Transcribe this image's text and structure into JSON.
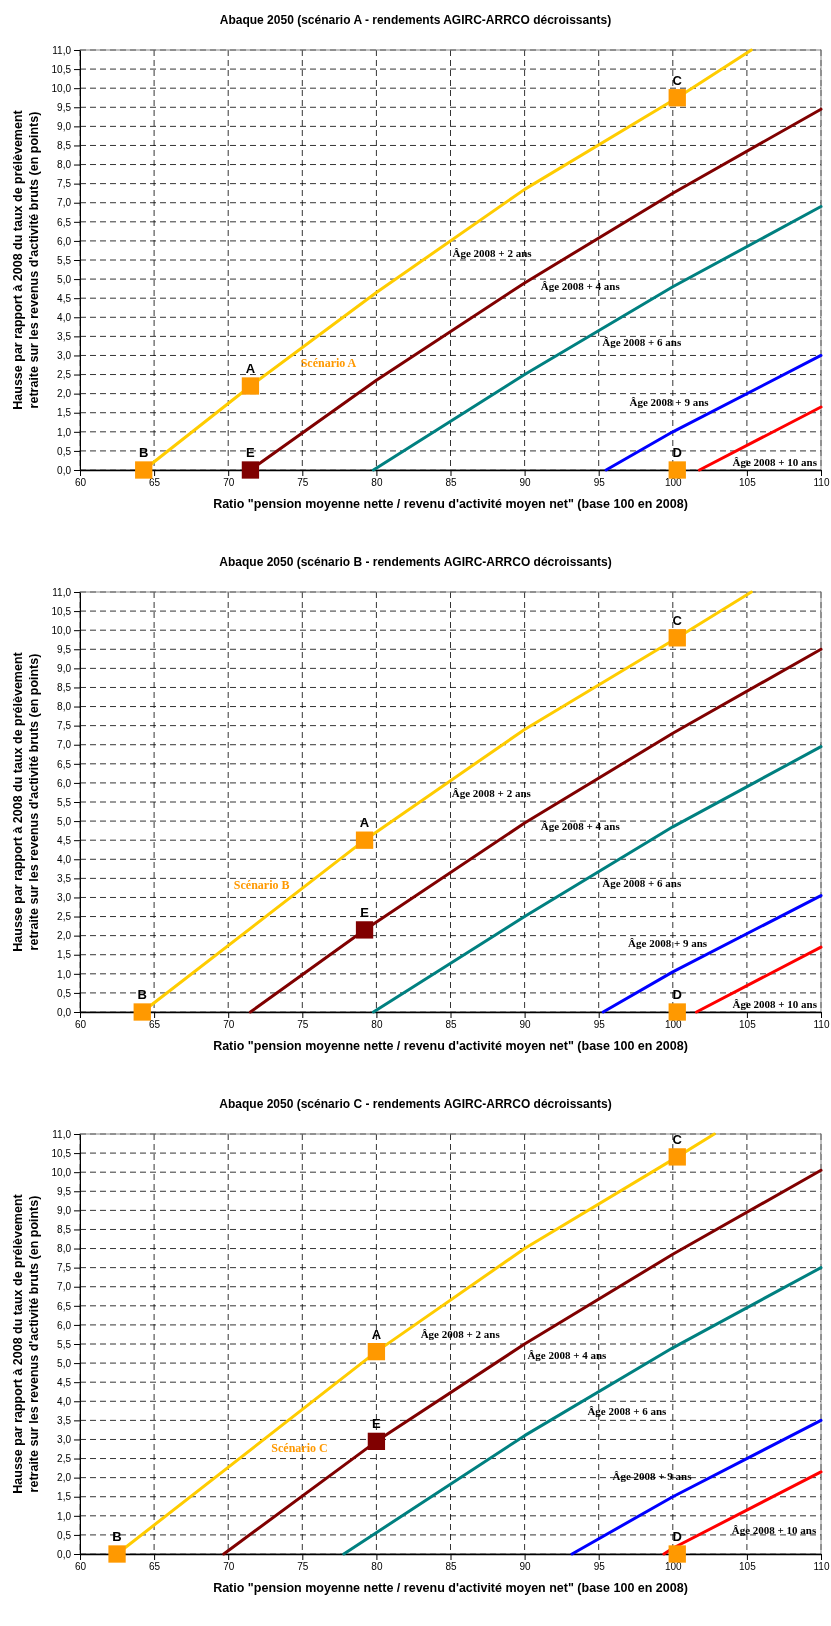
{
  "chart_data": [
    {
      "type": "line",
      "title": "Abaque 2050 (scénario A - rendements AGIRC-ARRCO décroissants)",
      "xlabel": "Ratio \"pension moyenne nette / revenu d'activité moyen net\" (base 100 en 2008)",
      "ylabel": "Hausse par rapport à 2008 du taux de prélèvement\nretraite sur les revenus d'activité bruts (en points)",
      "xlim": [
        60,
        110
      ],
      "xticks": [
        60,
        65,
        70,
        75,
        80,
        85,
        90,
        95,
        100,
        105,
        110
      ],
      "ylim": [
        0,
        11
      ],
      "yticks": [
        {
          "value": 0,
          "label": "0,0"
        },
        {
          "value": 0.5,
          "label": "0,5"
        },
        {
          "value": 1,
          "label": "1,0"
        },
        {
          "value": 1.5,
          "label": "1,5"
        },
        {
          "value": 2,
          "label": "2,0"
        },
        {
          "value": 2.5,
          "label": "2,5"
        },
        {
          "value": 3,
          "label": "3,0"
        },
        {
          "value": 3.5,
          "label": "3,5"
        },
        {
          "value": 4,
          "label": "4,0"
        },
        {
          "value": 4.5,
          "label": "4,5"
        },
        {
          "value": 5,
          "label": "5,0"
        },
        {
          "value": 5.5,
          "label": "5,5"
        },
        {
          "value": 6,
          "label": "6,0"
        },
        {
          "value": 6.5,
          "label": "6,5"
        },
        {
          "value": 7,
          "label": "7,0"
        },
        {
          "value": 7.5,
          "label": "7,5"
        },
        {
          "value": 8,
          "label": "8,0"
        },
        {
          "value": 8.5,
          "label": "8,5"
        },
        {
          "value": 9,
          "label": "9,0"
        },
        {
          "value": 9.5,
          "label": "9,5"
        },
        {
          "value": 10,
          "label": "10,0"
        },
        {
          "value": 10.5,
          "label": "10,5"
        },
        {
          "value": 11,
          "label": "11,0"
        }
      ],
      "grid": true,
      "line_style": "solid",
      "series": [
        {
          "name": "Âge 2008 + 2 ans",
          "color": "#ffcc00",
          "marker": "none",
          "x": [
            64.3,
            71.5,
            80,
            90,
            100.3,
            105.3
          ],
          "values": [
            0,
            2.2,
            4.65,
            7.35,
            9.75,
            11
          ]
        },
        {
          "name": "Âge 2008 + 4 ans",
          "color": "#800000",
          "marker": "none",
          "x": [
            71.5,
            80,
            90,
            100,
            110
          ],
          "values": [
            0,
            2.35,
            4.9,
            7.25,
            9.45
          ]
        },
        {
          "name": "Âge 2008 + 6 ans",
          "color": "#008080",
          "marker": "none",
          "x": [
            79.8,
            90,
            100,
            110
          ],
          "values": [
            0,
            2.5,
            4.8,
            6.9
          ]
        },
        {
          "name": "Âge 2008 + 9 ans",
          "color": "#0000ff",
          "marker": "none",
          "x": [
            95.5,
            100,
            110
          ],
          "values": [
            0,
            1,
            3
          ]
        },
        {
          "name": "Âge 2008 + 10 ans",
          "color": "#ff0000",
          "marker": "none",
          "x": [
            101.8,
            110
          ],
          "values": [
            0,
            1.65
          ]
        },
        {
          "type": "scatter",
          "color": "#ff9900",
          "marker": "square",
          "x": [
            71.5,
            64.3,
            100.3,
            100.3
          ],
          "values": [
            2.2,
            0,
            9.75,
            0
          ],
          "value_labels": [
            "A",
            "B",
            "C",
            "D"
          ]
        },
        {
          "type": "scatter",
          "color": "#800000",
          "marker": "square",
          "x": [
            71.5
          ],
          "values": [
            0
          ],
          "value_labels": [
            "E"
          ]
        }
      ],
      "annotations": [
        "Scénario A"
      ]
    },
    {
      "type": "line",
      "title": "Abaque 2050 (scénario B - rendements AGIRC-ARRCO décroissants)",
      "xlabel": "Ratio \"pension moyenne nette / revenu d'activité moyen net\" (base 100 en 2008)",
      "ylabel": "Hausse par rapport à 2008 du taux de prélèvement\nretraite sur les revenus d'activité bruts (en points)",
      "xlim": [
        60,
        110
      ],
      "xticks": [
        60,
        65,
        70,
        75,
        80,
        85,
        90,
        95,
        100,
        105,
        110
      ],
      "ylim": [
        0,
        11
      ],
      "yticks": [
        {
          "value": 0,
          "label": "0,0"
        },
        {
          "value": 0.5,
          "label": "0,5"
        },
        {
          "value": 1,
          "label": "1,0"
        },
        {
          "value": 1.5,
          "label": "1,5"
        },
        {
          "value": 2,
          "label": "2,0"
        },
        {
          "value": 2.5,
          "label": "2,5"
        },
        {
          "value": 3,
          "label": "3,0"
        },
        {
          "value": 3.5,
          "label": "3,5"
        },
        {
          "value": 4,
          "label": "4,0"
        },
        {
          "value": 4.5,
          "label": "4,5"
        },
        {
          "value": 5,
          "label": "5,0"
        },
        {
          "value": 5.5,
          "label": "5,5"
        },
        {
          "value": 6,
          "label": "6,0"
        },
        {
          "value": 6.5,
          "label": "6,5"
        },
        {
          "value": 7,
          "label": "7,0"
        },
        {
          "value": 7.5,
          "label": "7,5"
        },
        {
          "value": 8,
          "label": "8,0"
        },
        {
          "value": 8.5,
          "label": "8,5"
        },
        {
          "value": 9,
          "label": "9,0"
        },
        {
          "value": 9.5,
          "label": "9,5"
        },
        {
          "value": 10,
          "label": "10,0"
        },
        {
          "value": 10.5,
          "label": "10,5"
        },
        {
          "value": 11,
          "label": "11,0"
        }
      ],
      "grid": true,
      "line_style": "solid",
      "series": [
        {
          "name": "Âge 2008 + 2 ans",
          "color": "#ffcc00",
          "marker": "none",
          "x": [
            64.2,
            79.2,
            90,
            100.3,
            105.3
          ],
          "values": [
            0,
            4.5,
            7.4,
            9.8,
            11
          ]
        },
        {
          "name": "Âge 2008 + 4 ans",
          "color": "#800000",
          "marker": "none",
          "x": [
            71.5,
            79.2,
            90,
            100,
            110
          ],
          "values": [
            0,
            2.15,
            4.95,
            7.3,
            9.5
          ]
        },
        {
          "name": "Âge 2008 + 6 ans",
          "color": "#008080",
          "marker": "none",
          "x": [
            79.8,
            90,
            100,
            110
          ],
          "values": [
            0,
            2.5,
            4.85,
            6.95
          ]
        },
        {
          "name": "Âge 2008 + 9 ans",
          "color": "#0000ff",
          "marker": "none",
          "x": [
            95.3,
            100,
            110
          ],
          "values": [
            0,
            1.05,
            3.05
          ]
        },
        {
          "name": "Âge 2008 + 10 ans",
          "color": "#ff0000",
          "marker": "none",
          "x": [
            101.6,
            110
          ],
          "values": [
            0,
            1.7
          ]
        },
        {
          "type": "scatter",
          "color": "#ff9900",
          "marker": "square",
          "x": [
            79.2,
            64.2,
            100.3,
            100.3
          ],
          "values": [
            4.5,
            0,
            9.8,
            0
          ],
          "value_labels": [
            "A",
            "B",
            "C",
            "D"
          ]
        },
        {
          "type": "scatter",
          "color": "#800000",
          "marker": "square",
          "x": [
            79.2
          ],
          "values": [
            2.15
          ],
          "value_labels": [
            "E"
          ]
        }
      ],
      "annotations": [
        "Scénario B"
      ]
    },
    {
      "type": "line",
      "title": "Abaque 2050 (scénario C - rendements AGIRC-ARRCO décroissants)",
      "xlabel": "Ratio \"pension moyenne nette / revenu d'activité moyen net\" (base 100 en 2008)",
      "ylabel": "Hausse par rapport à 2008 du taux de prélèvement\nretraite sur les revenus d'activité bruts (en points)",
      "xlim": [
        60,
        110
      ],
      "xticks": [
        60,
        65,
        70,
        75,
        80,
        85,
        90,
        95,
        100,
        105,
        110
      ],
      "ylim": [
        0,
        11
      ],
      "yticks": [
        {
          "value": 0,
          "label": "0,0"
        },
        {
          "value": 0.5,
          "label": "0,5"
        },
        {
          "value": 1,
          "label": "1,0"
        },
        {
          "value": 1.5,
          "label": "1,5"
        },
        {
          "value": 2,
          "label": "2,0"
        },
        {
          "value": 2.5,
          "label": "2,5"
        },
        {
          "value": 3,
          "label": "3,0"
        },
        {
          "value": 3.5,
          "label": "3,5"
        },
        {
          "value": 4,
          "label": "4,0"
        },
        {
          "value": 4.5,
          "label": "4,5"
        },
        {
          "value": 5,
          "label": "5,0"
        },
        {
          "value": 5.5,
          "label": "5,5"
        },
        {
          "value": 6,
          "label": "6,0"
        },
        {
          "value": 6.5,
          "label": "6,5"
        },
        {
          "value": 7,
          "label": "7,0"
        },
        {
          "value": 7.5,
          "label": "7,5"
        },
        {
          "value": 8,
          "label": "8,0"
        },
        {
          "value": 8.5,
          "label": "8,5"
        },
        {
          "value": 9,
          "label": "9,0"
        },
        {
          "value": 9.5,
          "label": "9,5"
        },
        {
          "value": 10,
          "label": "10,0"
        },
        {
          "value": 10.5,
          "label": "10,5"
        },
        {
          "value": 11,
          "label": "11,0"
        }
      ],
      "grid": true,
      "line_style": "solid",
      "series": [
        {
          "name": "Âge 2008 + 2 ans",
          "color": "#ffcc00",
          "marker": "none",
          "x": [
            62.5,
            80,
            90,
            100.3,
            102.8
          ],
          "values": [
            0,
            5.3,
            8,
            10.4,
            11
          ]
        },
        {
          "name": "Âge 2008 + 4 ans",
          "color": "#800000",
          "marker": "none",
          "x": [
            69.7,
            80,
            90,
            100,
            110
          ],
          "values": [
            0,
            2.95,
            5.5,
            7.85,
            10.05
          ]
        },
        {
          "name": "Âge 2008 + 6 ans",
          "color": "#008080",
          "marker": "none",
          "x": [
            77.8,
            90,
            100,
            110
          ],
          "values": [
            0,
            3.1,
            5.4,
            7.5
          ]
        },
        {
          "name": "Âge 2008 + 9 ans",
          "color": "#0000ff",
          "marker": "none",
          "x": [
            93.2,
            100,
            110
          ],
          "values": [
            0,
            1.5,
            3.5
          ]
        },
        {
          "name": "Âge 2008 + 10 ans",
          "color": "#ff0000",
          "marker": "none",
          "x": [
            99.4,
            100,
            110
          ],
          "values": [
            0,
            0.15,
            2.15
          ]
        },
        {
          "type": "scatter",
          "color": "#ff9900",
          "marker": "square",
          "x": [
            80,
            62.5,
            100.3,
            100.3
          ],
          "values": [
            5.3,
            0,
            10.4,
            0
          ],
          "value_labels": [
            "A",
            "B",
            "C",
            "D"
          ]
        },
        {
          "type": "scatter",
          "color": "#800000",
          "marker": "square",
          "x": [
            80
          ],
          "values": [
            2.95
          ],
          "value_labels": [
            "E"
          ]
        }
      ],
      "annotations": [
        "Scénario C"
      ]
    }
  ]
}
